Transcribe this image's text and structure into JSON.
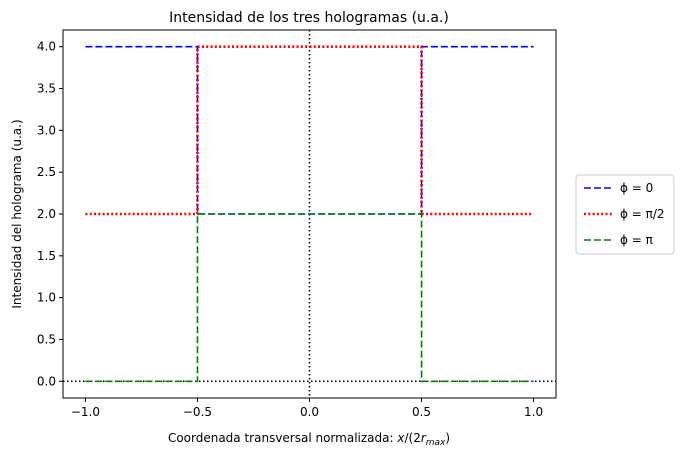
{
  "chart_data": {
    "type": "line",
    "title": "Intensidad de los tres hologramas (u.a.)",
    "xlabel": "Coordenada transversal normalizada: x/(2r_max)",
    "ylabel": "Intensidad del holograma (u.a.)",
    "xlim": [
      -1.1,
      1.1
    ],
    "ylim": [
      -0.2,
      4.2
    ],
    "xticks": [
      -1.0,
      -0.5,
      0.0,
      0.5,
      1.0
    ],
    "xtick_labels": [
      "−1.0",
      "−0.5",
      "0.0",
      "0.5",
      "1.0"
    ],
    "yticks": [
      0.0,
      0.5,
      1.0,
      1.5,
      2.0,
      2.5,
      3.0,
      3.5,
      4.0
    ],
    "ytick_labels": [
      "0.0",
      "0.5",
      "1.0",
      "1.5",
      "2.0",
      "2.5",
      "3.0",
      "3.5",
      "4.0"
    ],
    "grid": false,
    "legend_position": "outside-right",
    "reference_lines": [
      {
        "orientation": "horizontal",
        "value": 0.0,
        "style": "dotted",
        "color": "#000000"
      },
      {
        "orientation": "vertical",
        "value": 0.0,
        "style": "dotted",
        "color": "#000000"
      }
    ],
    "series": [
      {
        "name": "ϕ = 0",
        "color": "#0000ff",
        "style": "dashed",
        "x": [
          -1.0,
          -0.5,
          -0.5,
          0.5,
          0.5,
          1.0
        ],
        "y": [
          4.0,
          4.0,
          2.0,
          2.0,
          4.0,
          4.0
        ]
      },
      {
        "name": "ϕ = π/2",
        "color": "#ff0000",
        "style": "dotted",
        "x": [
          -1.0,
          -0.5,
          -0.5,
          0.5,
          0.5,
          1.0
        ],
        "y": [
          2.0,
          2.0,
          4.0,
          4.0,
          2.0,
          2.0
        ]
      },
      {
        "name": "ϕ = π",
        "color": "#008000",
        "style": "dashed",
        "x": [
          -1.0,
          -0.5,
          -0.5,
          0.5,
          0.5,
          1.0
        ],
        "y": [
          0.0,
          0.0,
          2.0,
          2.0,
          0.0,
          0.0
        ]
      }
    ]
  }
}
